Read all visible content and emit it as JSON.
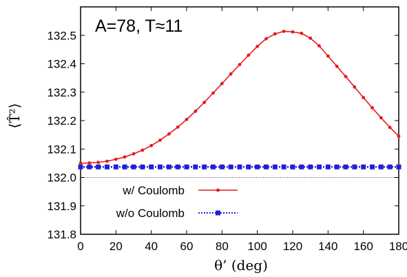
{
  "chart_data": {
    "type": "line",
    "annotation": "A=78, T≈11",
    "xlabel": "θ’ (deg)",
    "ylabel": "⟨T̂²⟩",
    "xlim": [
      0,
      180
    ],
    "ylim": [
      131.8,
      132.6
    ],
    "xticks": [
      0,
      20,
      40,
      60,
      80,
      100,
      120,
      140,
      160,
      180
    ],
    "yticks": [
      131.8,
      131.9,
      132.0,
      132.1,
      132.2,
      132.3,
      132.4,
      132.5
    ],
    "ytick_labels": [
      "131.8",
      "131.9",
      "132.0",
      "132.1",
      "132.2",
      "132.3",
      "132.4",
      "132.5"
    ],
    "reference_line_y": 132.0,
    "legend_position": "bottom-left",
    "series": [
      {
        "name": "w/ Coulomb",
        "color": "#e41a1c",
        "marker": "circle",
        "line": "solid",
        "x": [
          0,
          5,
          10,
          15,
          20,
          25,
          30,
          35,
          40,
          45,
          50,
          55,
          60,
          65,
          70,
          75,
          80,
          85,
          90,
          95,
          100,
          105,
          110,
          115,
          120,
          125,
          130,
          135,
          140,
          145,
          150,
          155,
          160,
          165,
          170,
          175,
          180
        ],
        "y": [
          132.05,
          132.051,
          132.053,
          132.057,
          132.064,
          132.072,
          132.083,
          132.096,
          132.112,
          132.131,
          132.153,
          132.177,
          132.204,
          132.233,
          132.264,
          132.297,
          132.33,
          132.364,
          132.397,
          132.43,
          132.461,
          132.488,
          132.505,
          132.514,
          132.512,
          132.507,
          132.49,
          132.463,
          132.427,
          132.391,
          132.355,
          132.318,
          132.281,
          132.245,
          132.21,
          132.176,
          132.145
        ]
      },
      {
        "name": "w/o Coulomb",
        "color": "#1f1fd6",
        "marker": "square",
        "line": "dotted",
        "x": [
          0,
          5,
          10,
          15,
          20,
          25,
          30,
          35,
          40,
          45,
          50,
          55,
          60,
          65,
          70,
          75,
          80,
          85,
          90,
          95,
          100,
          105,
          110,
          115,
          120,
          125,
          130,
          135,
          140,
          145,
          150,
          155,
          160,
          165,
          170,
          175,
          180
        ],
        "y": [
          132.037,
          132.037,
          132.037,
          132.037,
          132.037,
          132.037,
          132.037,
          132.037,
          132.037,
          132.037,
          132.037,
          132.037,
          132.037,
          132.037,
          132.037,
          132.037,
          132.037,
          132.037,
          132.037,
          132.037,
          132.037,
          132.037,
          132.037,
          132.037,
          132.037,
          132.037,
          132.037,
          132.037,
          132.037,
          132.037,
          132.037,
          132.037,
          132.037,
          132.037,
          132.037,
          132.037,
          132.037
        ]
      }
    ]
  }
}
